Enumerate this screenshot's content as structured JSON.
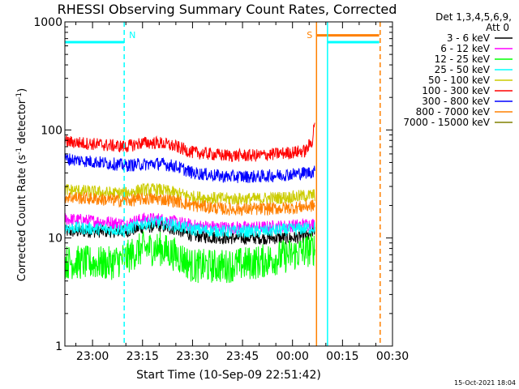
{
  "chart_data": {
    "type": "line",
    "title": "RHESSI Observing Summary Count Rates, Corrected",
    "xlabel": "Start Time (10-Sep-09 22:51:42)",
    "ylabel_parts": {
      "main": "Corrected Count Rate (s",
      "sup": "-1",
      "tail": " detector",
      "sup2": "-1",
      "close": ")"
    },
    "y_scale": "log",
    "ylim": [
      1,
      1000
    ],
    "y_ticks": [
      {
        "v": 1,
        "label": "1"
      },
      {
        "v": 10,
        "label": "10"
      },
      {
        "v": 100,
        "label": "100"
      },
      {
        "v": 1000,
        "label": "1000"
      }
    ],
    "xlim_minutes_from_2300": [
      -8.3,
      32.0
    ],
    "x_ticks": [
      {
        "t": 0,
        "label": "23:00"
      },
      {
        "t": 15,
        "label": "23:15"
      },
      {
        "t": 30,
        "label": "23:30"
      },
      {
        "t": 45,
        "label": "23:45"
      },
      {
        "t": 60,
        "label": "00:00"
      },
      {
        "t": 75,
        "label": "00:15"
      },
      {
        "t": 90,
        "label": "00:30"
      }
    ],
    "legend_header": [
      "Det 1,3,4,5,6,9,",
      "Att 0"
    ],
    "legend_position": "right",
    "series": [
      {
        "name": "3 - 6 keV",
        "color": "#000000",
        "x": [
          -8.3,
          5,
          10,
          15,
          20,
          25,
          30,
          40,
          50,
          55,
          60,
          65,
          66.7
        ],
        "values": [
          11.5,
          11.5,
          11.5,
          12.5,
          13,
          12,
          10.5,
          10,
          10,
          10,
          10,
          10.5,
          12
        ]
      },
      {
        "name": "6 - 12 keV",
        "color": "#ff00ff",
        "x": [
          -8.3,
          5,
          10,
          15,
          20,
          25,
          30,
          40,
          50,
          60,
          66.7
        ],
        "values": [
          15,
          14,
          13.5,
          15,
          15,
          14,
          13,
          12.5,
          12.5,
          13,
          13.5
        ]
      },
      {
        "name": "12 - 25 keV",
        "color": "#00ff00",
        "x": [
          -8.3,
          5,
          10,
          15,
          20,
          25,
          30,
          40,
          50,
          60,
          66.7
        ],
        "values": [
          6,
          5.8,
          6.5,
          8,
          8,
          7,
          5.5,
          5.5,
          6,
          7,
          8
        ]
      },
      {
        "name": "25 - 50 keV",
        "color": "#00ffff",
        "x": [
          -8.3,
          5,
          10,
          15,
          20,
          25,
          30,
          40,
          50,
          60,
          66.7
        ],
        "values": [
          12.5,
          12,
          12,
          13.5,
          14,
          13,
          12,
          11.5,
          11.5,
          12,
          12.5
        ]
      },
      {
        "name": "50 - 100 keV",
        "color": "#cccc00",
        "x": [
          -8.3,
          5,
          10,
          15,
          20,
          25,
          30,
          40,
          50,
          60,
          66.7
        ],
        "values": [
          28,
          26,
          26,
          28,
          28,
          26,
          24,
          23,
          23,
          24,
          25
        ]
      },
      {
        "name": "100 - 300 keV",
        "color": "#ff0000",
        "x": [
          -8.3,
          5,
          10,
          15,
          20,
          25,
          30,
          40,
          50,
          60,
          64,
          66,
          66.7
        ],
        "values": [
          78,
          72,
          70,
          76,
          76,
          70,
          62,
          58,
          58,
          62,
          64,
          80,
          125
        ]
      },
      {
        "name": "300 - 800 keV",
        "color": "#0000ff",
        "x": [
          -8.3,
          5,
          10,
          15,
          20,
          25,
          30,
          40,
          50,
          60,
          66.7
        ],
        "values": [
          54,
          49,
          47,
          48,
          49,
          46,
          40,
          37,
          37,
          39,
          41
        ]
      },
      {
        "name": "800 - 7000 keV",
        "color": "#ff8000",
        "x": [
          -8.3,
          5,
          10,
          15,
          20,
          25,
          30,
          40,
          50,
          60,
          66.7
        ],
        "values": [
          24,
          22.5,
          22,
          23,
          23,
          22,
          20,
          18.5,
          18.5,
          19,
          20
        ]
      },
      {
        "name": "7000 - 15000 keV",
        "color": "#808000",
        "x": [],
        "values": []
      }
    ],
    "attenuator_bars": [
      {
        "color": "#00ffff",
        "x0": -8.3,
        "x1": 9.5,
        "y": 650
      },
      {
        "color": "#00ffff",
        "x0": 70.5,
        "x1": 86,
        "y": 650
      },
      {
        "color": "#ff8000",
        "x0": 67.2,
        "x1": 86,
        "y": 750
      }
    ],
    "markers": [
      {
        "label": "N",
        "color": "#00ffff",
        "x": 9.5,
        "style": "dashed"
      },
      {
        "label": "",
        "color": "#00ffff",
        "x": 70.5,
        "style": "solid"
      },
      {
        "label": "S",
        "color": "#ff8000",
        "x": 67.2,
        "style": "solid"
      },
      {
        "label": "",
        "color": "#ff8000",
        "x": 86.3,
        "style": "dashed"
      }
    ],
    "grid": false
  },
  "footer": {
    "timestamp": "15-Oct-2021 18:04"
  }
}
